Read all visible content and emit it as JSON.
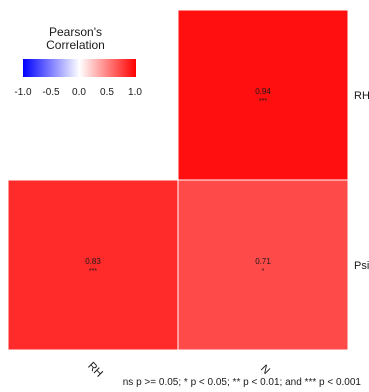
{
  "chart_data": {
    "type": "heatmap",
    "title": "",
    "x_categories": [
      "RH",
      "N"
    ],
    "y_categories": [
      "RH",
      "Psi"
    ],
    "cells": [
      {
        "x": "N",
        "y": "RH",
        "r": 0.94,
        "stars": "***",
        "label": "0.94"
      },
      {
        "x": "RH",
        "y": "Psi",
        "r": 0.83,
        "stars": "***",
        "label": "0.83"
      },
      {
        "x": "N",
        "y": "Psi",
        "r": 0.71,
        "stars": "*",
        "label": "0.71"
      }
    ],
    "color_scale": {
      "low": "#0000ff",
      "mid": "#ffffff",
      "high": "#ff0000",
      "domain": [
        -1.0,
        1.0
      ]
    },
    "legend": {
      "title": "Pearson's Correlation",
      "title_lines": [
        "Pearson's",
        "Correlation"
      ],
      "ticks": [
        "-1.0",
        "-0.5",
        "0.0",
        "0.5",
        "1.0"
      ]
    },
    "caption": "ns p >= 0.05; * p < 0.05; ** p < 0.01; and *** p < 0.001"
  }
}
